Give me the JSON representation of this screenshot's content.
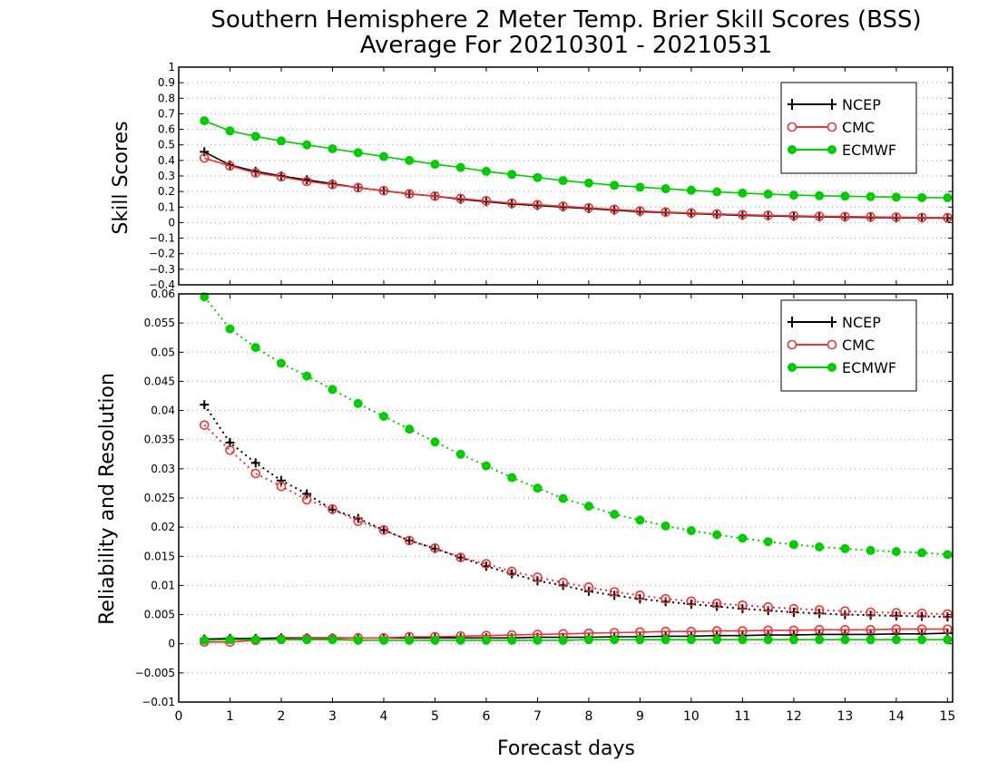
{
  "chart_data": {
    "type": "line",
    "title": "Southern Hemisphere 2 Meter Temp. Brier Skill Scores (BSS)",
    "subtitle": "Average For 20210301 - 20210531",
    "xlabel": "Forecast days",
    "xlim": [
      0,
      15.1
    ],
    "xticks": [
      "0",
      "1",
      "2",
      "3",
      "4",
      "5",
      "6",
      "7",
      "8",
      "9",
      "10",
      "11",
      "12",
      "13",
      "14",
      "15"
    ],
    "panels": [
      {
        "ylabel": "Skill Scores",
        "ylim": [
          -0.4,
          1.0
        ],
        "yticks": [
          "−0.4",
          "−0.3",
          "−0.2",
          "−0.1",
          "0",
          "0.1",
          "0.2",
          "0.3",
          "0.4",
          "0.5",
          "0.6",
          "0.7",
          "0.8",
          "0.9",
          "1"
        ],
        "grid": true,
        "legend_position": "top-right",
        "x": [
          0.5,
          1,
          1.5,
          2,
          2.5,
          3,
          3.5,
          4,
          4.5,
          5,
          5.5,
          6,
          6.5,
          7,
          7.5,
          8,
          8.5,
          9,
          9.5,
          10,
          10.5,
          11,
          11.5,
          12,
          12.5,
          13,
          13.5,
          14,
          14.5,
          15
        ],
        "series": [
          {
            "name": "NCEP",
            "color": "#000000",
            "marker": "plus",
            "line": "solid",
            "values": [
              0.455,
              0.37,
              0.33,
              0.3,
              0.275,
              0.25,
              0.225,
              0.205,
              0.185,
              0.17,
              0.15,
              0.135,
              0.12,
              0.11,
              0.1,
              0.09,
              0.08,
              0.07,
              0.065,
              0.058,
              0.052,
              0.047,
              0.043,
              0.04,
              0.037,
              0.035,
              0.033,
              0.031,
              0.03,
              0.029
            ]
          },
          {
            "name": "CMC",
            "color": "#ee3333",
            "marker": "open-circle",
            "line": "solid",
            "values": [
              0.415,
              0.365,
              0.32,
              0.295,
              0.265,
              0.245,
              0.225,
              0.205,
              0.185,
              0.17,
              0.155,
              0.14,
              0.125,
              0.115,
              0.105,
              0.095,
              0.085,
              0.075,
              0.068,
              0.062,
              0.056,
              0.051,
              0.047,
              0.044,
              0.041,
              0.039,
              0.037,
              0.035,
              0.033,
              0.032
            ]
          },
          {
            "name": "ECMWF",
            "color": "#00cc00",
            "marker": "filled-circle",
            "line": "solid",
            "values": [
              0.655,
              0.59,
              0.555,
              0.525,
              0.5,
              0.475,
              0.45,
              0.425,
              0.4,
              0.375,
              0.355,
              0.33,
              0.31,
              0.29,
              0.27,
              0.255,
              0.24,
              0.228,
              0.218,
              0.208,
              0.198,
              0.19,
              0.183,
              0.177,
              0.173,
              0.17,
              0.167,
              0.164,
              0.161,
              0.16
            ]
          }
        ]
      },
      {
        "ylabel": "Reliability and Resolution",
        "ylim": [
          -0.01,
          0.06
        ],
        "yticks": [
          "−0.01",
          "−0.005",
          "0",
          "0.005",
          "0.01",
          "0.015",
          "0.02",
          "0.025",
          "0.03",
          "0.035",
          "0.04",
          "0.045",
          "0.05",
          "0.055",
          "0.06"
        ],
        "grid": true,
        "legend_position": "top-right",
        "x": [
          0.5,
          1,
          1.5,
          2,
          2.5,
          3,
          3.5,
          4,
          4.5,
          5,
          5.5,
          6,
          6.5,
          7,
          7.5,
          8,
          8.5,
          9,
          9.5,
          10,
          10.5,
          11,
          11.5,
          12,
          12.5,
          13,
          13.5,
          14,
          14.5,
          15
        ],
        "series": [
          {
            "name": "NCEP",
            "color": "#000000",
            "marker": "plus",
            "line": "dotted",
            "values": [
              0.041,
              0.0345,
              0.031,
              0.028,
              0.0257,
              0.023,
              0.0215,
              0.0195,
              0.0177,
              0.0163,
              0.0148,
              0.0133,
              0.012,
              0.0108,
              0.01,
              0.009,
              0.0083,
              0.0077,
              0.0072,
              0.0068,
              0.0064,
              0.006,
              0.0057,
              0.0054,
              0.0052,
              0.005,
              0.0049,
              0.0048,
              0.0047,
              0.0046
            ]
          },
          {
            "name": "CMC",
            "color": "#ee3333",
            "marker": "open-circle",
            "line": "dotted",
            "values": [
              0.0375,
              0.0332,
              0.0292,
              0.027,
              0.0247,
              0.0231,
              0.021,
              0.0195,
              0.0177,
              0.0164,
              0.0148,
              0.0137,
              0.0124,
              0.0114,
              0.0105,
              0.0097,
              0.0089,
              0.0083,
              0.0077,
              0.0073,
              0.0069,
              0.0066,
              0.0063,
              0.006,
              0.0058,
              0.0056,
              0.0054,
              0.0053,
              0.0052,
              0.0051
            ]
          },
          {
            "name": "ECMWF",
            "color": "#00cc00",
            "marker": "filled-circle",
            "line": "dotted",
            "values": [
              0.0595,
              0.054,
              0.0508,
              0.0481,
              0.0459,
              0.0436,
              0.0412,
              0.039,
              0.0368,
              0.0346,
              0.0325,
              0.0305,
              0.0285,
              0.0267,
              0.0249,
              0.0236,
              0.0222,
              0.0212,
              0.0202,
              0.0194,
              0.0187,
              0.0181,
              0.0175,
              0.017,
              0.0166,
              0.0163,
              0.016,
              0.0158,
              0.0156,
              0.0153
            ]
          },
          {
            "name": "",
            "color": "#000000",
            "marker": "plus",
            "line": "solid",
            "values": [
              0.0008,
              0.0009,
              0.0009,
              0.001,
              0.001,
              0.001,
              0.001,
              0.001,
              0.001,
              0.001,
              0.001,
              0.001,
              0.001,
              0.0011,
              0.0011,
              0.0011,
              0.0012,
              0.0012,
              0.0013,
              0.0013,
              0.0014,
              0.0014,
              0.0015,
              0.0015,
              0.0016,
              0.0016,
              0.0016,
              0.0017,
              0.0017,
              0.0018
            ]
          },
          {
            "name": "",
            "color": "#ee3333",
            "marker": "open-circle",
            "line": "solid",
            "values": [
              0.0003,
              0.0003,
              0.0006,
              0.0008,
              0.0009,
              0.0009,
              0.001,
              0.001,
              0.0012,
              0.0012,
              0.0013,
              0.0014,
              0.0015,
              0.0016,
              0.0017,
              0.0018,
              0.0019,
              0.002,
              0.0021,
              0.0021,
              0.0022,
              0.0022,
              0.0023,
              0.0023,
              0.0024,
              0.0024,
              0.0024,
              0.0025,
              0.0025,
              0.0025
            ]
          },
          {
            "name": "",
            "color": "#00cc00",
            "marker": "filled-circle",
            "line": "solid",
            "values": [
              0.0006,
              0.0007,
              0.0007,
              0.0007,
              0.0007,
              0.0007,
              0.0006,
              0.0006,
              0.0006,
              0.0006,
              0.0006,
              0.0006,
              0.0006,
              0.0006,
              0.0006,
              0.0007,
              0.0007,
              0.0007,
              0.0007,
              0.0007,
              0.0007,
              0.0007,
              0.0007,
              0.0007,
              0.0007,
              0.0007,
              0.0007,
              0.0007,
              0.0007,
              0.0007
            ]
          }
        ]
      }
    ]
  }
}
